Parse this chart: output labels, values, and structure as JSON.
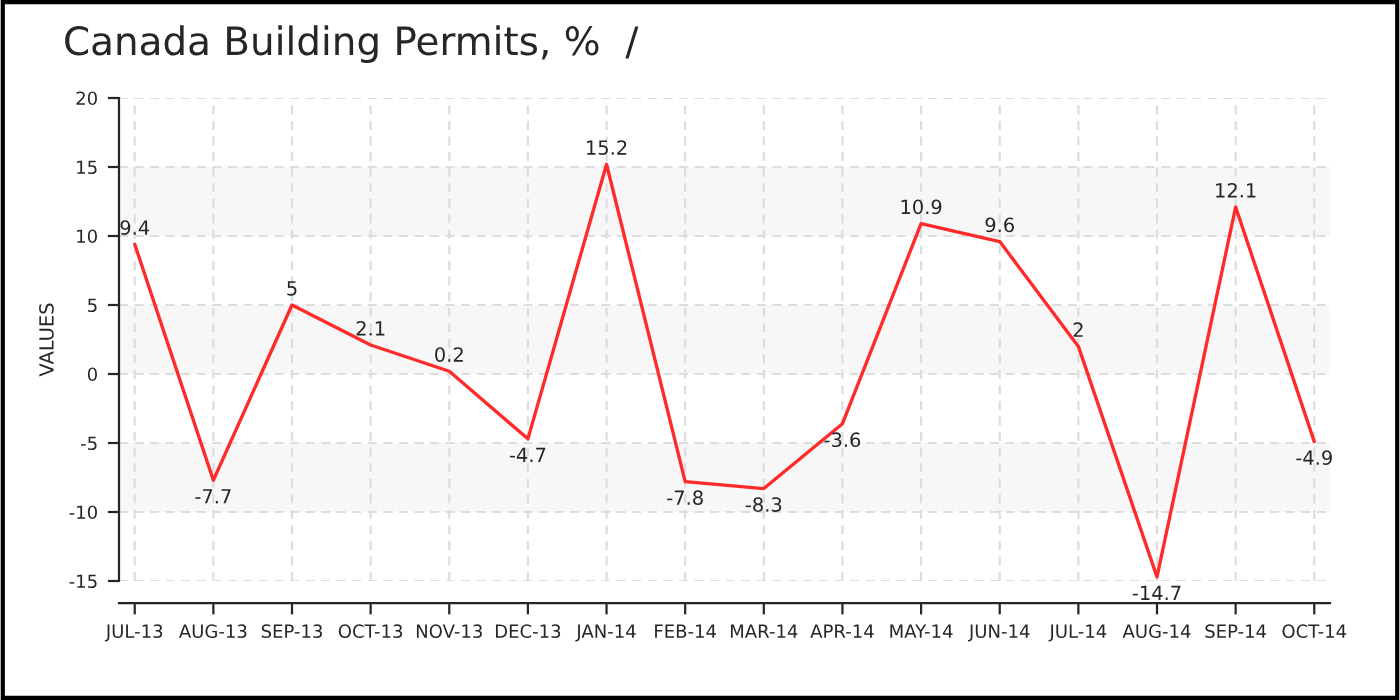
{
  "chart_data": {
    "type": "line",
    "title": "Canada Building Permits, %  /",
    "ylabel": "VALUES",
    "categories": [
      "JUL-13",
      "AUG-13",
      "SEP-13",
      "OCT-13",
      "NOV-13",
      "DEC-13",
      "JAN-14",
      "FEB-14",
      "MAR-14",
      "APR-14",
      "MAY-14",
      "JUN-14",
      "JUL-14",
      "AUG-14",
      "SEP-14",
      "OCT-14"
    ],
    "series": [
      {
        "color": "#ff2a2a",
        "values": [
          9.4,
          -7.7,
          5,
          2.1,
          0.2,
          -4.7,
          15.2,
          -7.8,
          -8.3,
          -3.6,
          10.9,
          9.6,
          2,
          -14.7,
          12.1,
          -4.9
        ]
      }
    ],
    "ylim": [
      -15,
      20
    ],
    "yticks": [
      -15,
      -10,
      -5,
      0,
      5,
      10,
      15,
      20
    ],
    "grid": true,
    "data_labels": true,
    "marker": "none",
    "line_style": "solid",
    "bands": [
      {
        "axis": "y",
        "from": 10,
        "to": 15,
        "color": "#f7f7f7"
      },
      {
        "axis": "y",
        "from": 0,
        "to": 5,
        "color": "#f7f7f7"
      },
      {
        "axis": "y",
        "from": -10,
        "to": -5,
        "color": "#f7f7f7"
      }
    ]
  }
}
